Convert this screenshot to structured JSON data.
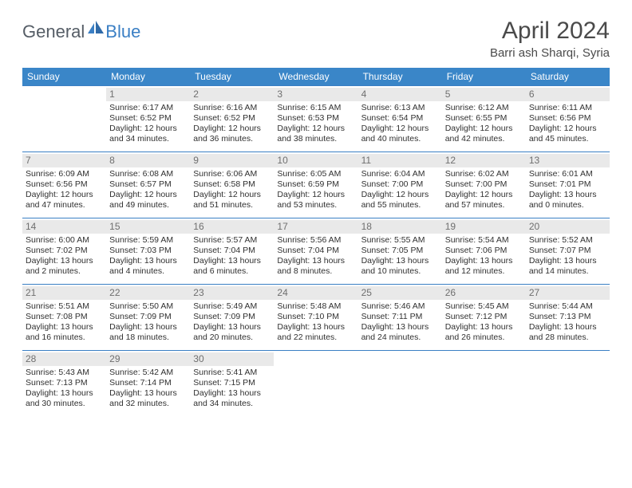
{
  "brand": {
    "general": "General",
    "blue": "Blue"
  },
  "title": "April 2024",
  "location": "Barri ash Sharqi, Syria",
  "colors": {
    "header_bg": "#3a86c8",
    "header_fg": "#ffffff",
    "rule": "#3a7fc4",
    "daynum_bg": "#e9e9e9",
    "daynum_fg": "#6f6f6f",
    "text": "#303030",
    "title_fg": "#4a4a4a"
  },
  "day_labels": [
    "Sunday",
    "Monday",
    "Tuesday",
    "Wednesday",
    "Thursday",
    "Friday",
    "Saturday"
  ],
  "weeks": [
    [
      {
        "n": "",
        "sr": "",
        "ss": "",
        "dl1": "",
        "dl2": ""
      },
      {
        "n": "1",
        "sr": "Sunrise: 6:17 AM",
        "ss": "Sunset: 6:52 PM",
        "dl1": "Daylight: 12 hours",
        "dl2": "and 34 minutes."
      },
      {
        "n": "2",
        "sr": "Sunrise: 6:16 AM",
        "ss": "Sunset: 6:52 PM",
        "dl1": "Daylight: 12 hours",
        "dl2": "and 36 minutes."
      },
      {
        "n": "3",
        "sr": "Sunrise: 6:15 AM",
        "ss": "Sunset: 6:53 PM",
        "dl1": "Daylight: 12 hours",
        "dl2": "and 38 minutes."
      },
      {
        "n": "4",
        "sr": "Sunrise: 6:13 AM",
        "ss": "Sunset: 6:54 PM",
        "dl1": "Daylight: 12 hours",
        "dl2": "and 40 minutes."
      },
      {
        "n": "5",
        "sr": "Sunrise: 6:12 AM",
        "ss": "Sunset: 6:55 PM",
        "dl1": "Daylight: 12 hours",
        "dl2": "and 42 minutes."
      },
      {
        "n": "6",
        "sr": "Sunrise: 6:11 AM",
        "ss": "Sunset: 6:56 PM",
        "dl1": "Daylight: 12 hours",
        "dl2": "and 45 minutes."
      }
    ],
    [
      {
        "n": "7",
        "sr": "Sunrise: 6:09 AM",
        "ss": "Sunset: 6:56 PM",
        "dl1": "Daylight: 12 hours",
        "dl2": "and 47 minutes."
      },
      {
        "n": "8",
        "sr": "Sunrise: 6:08 AM",
        "ss": "Sunset: 6:57 PM",
        "dl1": "Daylight: 12 hours",
        "dl2": "and 49 minutes."
      },
      {
        "n": "9",
        "sr": "Sunrise: 6:06 AM",
        "ss": "Sunset: 6:58 PM",
        "dl1": "Daylight: 12 hours",
        "dl2": "and 51 minutes."
      },
      {
        "n": "10",
        "sr": "Sunrise: 6:05 AM",
        "ss": "Sunset: 6:59 PM",
        "dl1": "Daylight: 12 hours",
        "dl2": "and 53 minutes."
      },
      {
        "n": "11",
        "sr": "Sunrise: 6:04 AM",
        "ss": "Sunset: 7:00 PM",
        "dl1": "Daylight: 12 hours",
        "dl2": "and 55 minutes."
      },
      {
        "n": "12",
        "sr": "Sunrise: 6:02 AM",
        "ss": "Sunset: 7:00 PM",
        "dl1": "Daylight: 12 hours",
        "dl2": "and 57 minutes."
      },
      {
        "n": "13",
        "sr": "Sunrise: 6:01 AM",
        "ss": "Sunset: 7:01 PM",
        "dl1": "Daylight: 13 hours",
        "dl2": "and 0 minutes."
      }
    ],
    [
      {
        "n": "14",
        "sr": "Sunrise: 6:00 AM",
        "ss": "Sunset: 7:02 PM",
        "dl1": "Daylight: 13 hours",
        "dl2": "and 2 minutes."
      },
      {
        "n": "15",
        "sr": "Sunrise: 5:59 AM",
        "ss": "Sunset: 7:03 PM",
        "dl1": "Daylight: 13 hours",
        "dl2": "and 4 minutes."
      },
      {
        "n": "16",
        "sr": "Sunrise: 5:57 AM",
        "ss": "Sunset: 7:04 PM",
        "dl1": "Daylight: 13 hours",
        "dl2": "and 6 minutes."
      },
      {
        "n": "17",
        "sr": "Sunrise: 5:56 AM",
        "ss": "Sunset: 7:04 PM",
        "dl1": "Daylight: 13 hours",
        "dl2": "and 8 minutes."
      },
      {
        "n": "18",
        "sr": "Sunrise: 5:55 AM",
        "ss": "Sunset: 7:05 PM",
        "dl1": "Daylight: 13 hours",
        "dl2": "and 10 minutes."
      },
      {
        "n": "19",
        "sr": "Sunrise: 5:54 AM",
        "ss": "Sunset: 7:06 PM",
        "dl1": "Daylight: 13 hours",
        "dl2": "and 12 minutes."
      },
      {
        "n": "20",
        "sr": "Sunrise: 5:52 AM",
        "ss": "Sunset: 7:07 PM",
        "dl1": "Daylight: 13 hours",
        "dl2": "and 14 minutes."
      }
    ],
    [
      {
        "n": "21",
        "sr": "Sunrise: 5:51 AM",
        "ss": "Sunset: 7:08 PM",
        "dl1": "Daylight: 13 hours",
        "dl2": "and 16 minutes."
      },
      {
        "n": "22",
        "sr": "Sunrise: 5:50 AM",
        "ss": "Sunset: 7:09 PM",
        "dl1": "Daylight: 13 hours",
        "dl2": "and 18 minutes."
      },
      {
        "n": "23",
        "sr": "Sunrise: 5:49 AM",
        "ss": "Sunset: 7:09 PM",
        "dl1": "Daylight: 13 hours",
        "dl2": "and 20 minutes."
      },
      {
        "n": "24",
        "sr": "Sunrise: 5:48 AM",
        "ss": "Sunset: 7:10 PM",
        "dl1": "Daylight: 13 hours",
        "dl2": "and 22 minutes."
      },
      {
        "n": "25",
        "sr": "Sunrise: 5:46 AM",
        "ss": "Sunset: 7:11 PM",
        "dl1": "Daylight: 13 hours",
        "dl2": "and 24 minutes."
      },
      {
        "n": "26",
        "sr": "Sunrise: 5:45 AM",
        "ss": "Sunset: 7:12 PM",
        "dl1": "Daylight: 13 hours",
        "dl2": "and 26 minutes."
      },
      {
        "n": "27",
        "sr": "Sunrise: 5:44 AM",
        "ss": "Sunset: 7:13 PM",
        "dl1": "Daylight: 13 hours",
        "dl2": "and 28 minutes."
      }
    ],
    [
      {
        "n": "28",
        "sr": "Sunrise: 5:43 AM",
        "ss": "Sunset: 7:13 PM",
        "dl1": "Daylight: 13 hours",
        "dl2": "and 30 minutes."
      },
      {
        "n": "29",
        "sr": "Sunrise: 5:42 AM",
        "ss": "Sunset: 7:14 PM",
        "dl1": "Daylight: 13 hours",
        "dl2": "and 32 minutes."
      },
      {
        "n": "30",
        "sr": "Sunrise: 5:41 AM",
        "ss": "Sunset: 7:15 PM",
        "dl1": "Daylight: 13 hours",
        "dl2": "and 34 minutes."
      },
      {
        "n": "",
        "sr": "",
        "ss": "",
        "dl1": "",
        "dl2": ""
      },
      {
        "n": "",
        "sr": "",
        "ss": "",
        "dl1": "",
        "dl2": ""
      },
      {
        "n": "",
        "sr": "",
        "ss": "",
        "dl1": "",
        "dl2": ""
      },
      {
        "n": "",
        "sr": "",
        "ss": "",
        "dl1": "",
        "dl2": ""
      }
    ]
  ]
}
